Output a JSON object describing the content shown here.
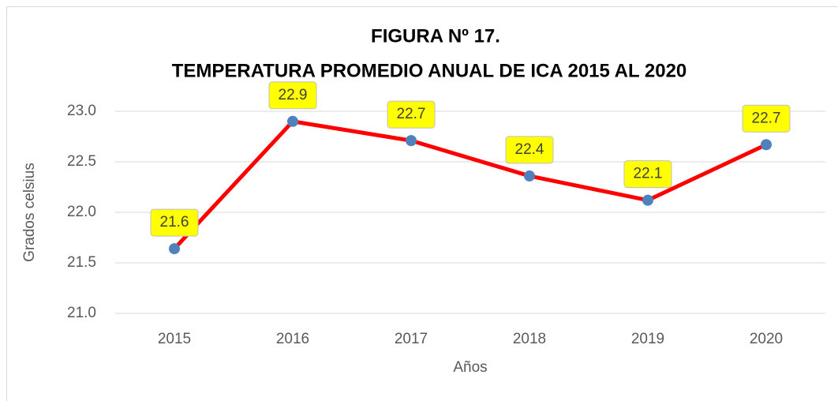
{
  "chart_data": {
    "type": "line",
    "title": "FIGURA Nº 17.",
    "subtitle": "TEMPERATURA PROMEDIO ANUAL DE ICA 2015 AL 2020",
    "x_label": "Años",
    "y_label": "Grados celsius",
    "categories": [
      "2015",
      "2016",
      "2017",
      "2018",
      "2019",
      "2020"
    ],
    "series": [
      {
        "name": "Temperatura",
        "color": "#ff0000",
        "marker_color": "#4f81bd",
        "values": [
          21.64,
          22.9,
          22.71,
          22.36,
          22.12,
          22.67
        ],
        "value_labels": [
          "21.6",
          "22.9",
          "22.7",
          "22.4",
          "22.1",
          "22.7"
        ]
      }
    ],
    "ylim": [
      21,
      23
    ],
    "yticks": [
      {
        "value": 21,
        "label": "21.0"
      },
      {
        "value": 21.5,
        "label": "21.5"
      },
      {
        "value": 22,
        "label": "22.0"
      },
      {
        "value": 22.5,
        "label": "22.5"
      },
      {
        "value": 23,
        "label": "23.0"
      }
    ],
    "grid": true,
    "label_box_color": "#ffff00"
  }
}
